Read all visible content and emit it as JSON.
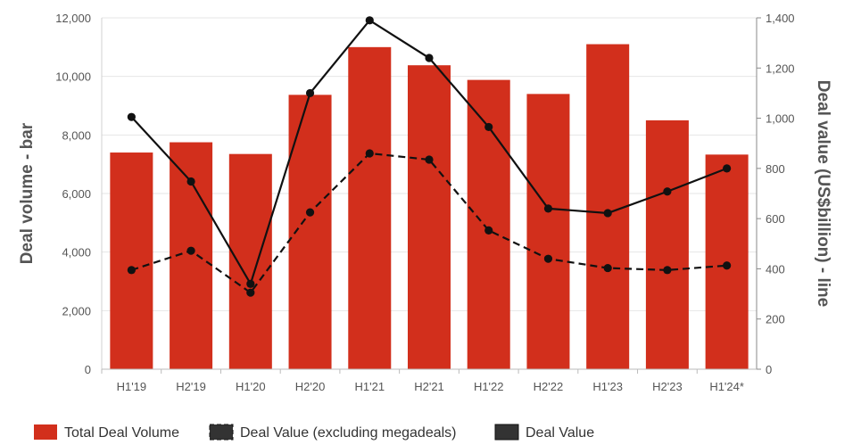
{
  "chart_data": {
    "type": "bar",
    "categories": [
      "H1'19",
      "H2'19",
      "H1'20",
      "H2'20",
      "H1'21",
      "H2'21",
      "H1'22",
      "H2'22",
      "H1'23",
      "H2'23",
      "H1'24*"
    ],
    "series": [
      {
        "name": "Total Deal Volume",
        "type": "bar",
        "axis": "left",
        "color": "#d22f1c",
        "values": [
          7400,
          7750,
          7350,
          9370,
          11000,
          10380,
          9880,
          9400,
          11100,
          8500,
          7330
        ]
      },
      {
        "name": "Deal Value (excluding megadeals)",
        "type": "line",
        "axis": "right",
        "style": "dashed",
        "color": "#111111",
        "values": [
          395,
          472,
          305,
          625,
          860,
          835,
          553,
          440,
          403,
          395,
          413
        ]
      },
      {
        "name": "Deal Value",
        "type": "line",
        "axis": "right",
        "style": "solid",
        "color": "#111111",
        "values": [
          1005,
          748,
          340,
          1100,
          1390,
          1240,
          965,
          640,
          622,
          708,
          800
        ]
      }
    ],
    "ylabel": "Deal volume - bar",
    "y2label": "Deal value (US$billion) - line",
    "ylim": [
      0,
      12000
    ],
    "y2lim": [
      0,
      1400
    ],
    "yticks": [
      0,
      2000,
      4000,
      6000,
      8000,
      10000,
      12000
    ],
    "y2ticks": [
      0,
      200,
      400,
      600,
      800,
      1000,
      1200,
      1400
    ],
    "ytick_labels": [
      "0",
      "2,000",
      "4,000",
      "6,000",
      "8,000",
      "10,000",
      "12,000"
    ],
    "y2tick_labels": [
      "0",
      "200",
      "400",
      "600",
      "800",
      "1,000",
      "1,200",
      "1,400"
    ],
    "grid": true,
    "legend_position": "bottom-left"
  }
}
